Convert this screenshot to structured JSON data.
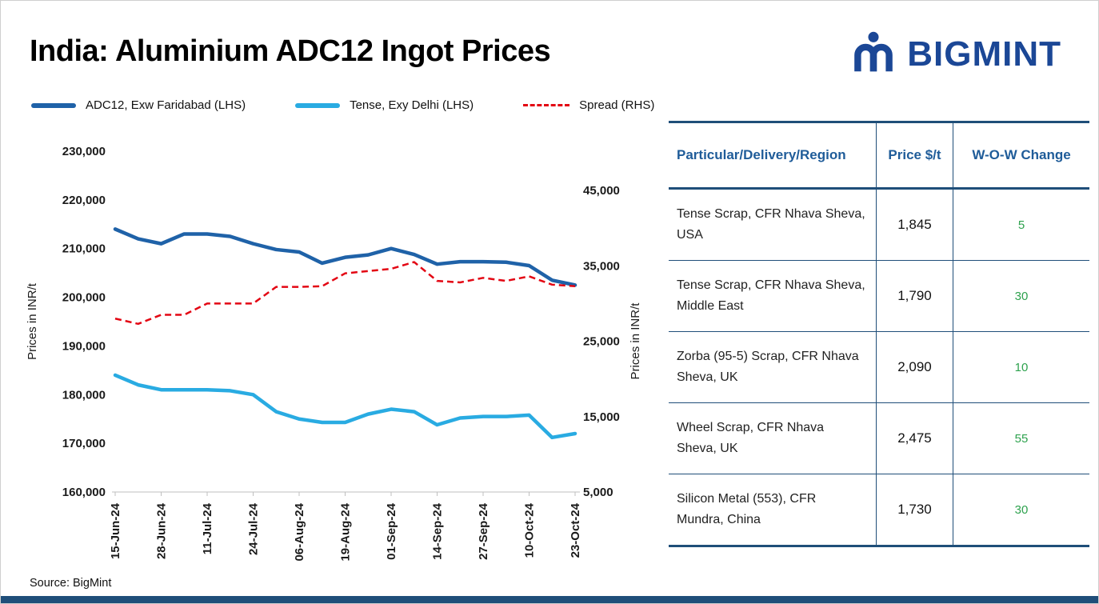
{
  "colors": {
    "navy": "#1F4E79",
    "header-blue": "#1F5C99",
    "blue-dark": "#1F62A8",
    "blue-light": "#29ABE2",
    "red": "#E30613",
    "green": "#2EA24E",
    "logo": "#1B4796"
  },
  "title": "India: Aluminium ADC12 Ingot Prices",
  "logo": {
    "text": "BIGMINT"
  },
  "legend": [
    {
      "label": "ADC12, Exw Faridabad (LHS)"
    },
    {
      "label": "Tense, Exy Delhi (LHS)"
    },
    {
      "label": "Spread (RHS)"
    }
  ],
  "chart_data": {
    "type": "line",
    "left_axis": {
      "label": "Prices in INR/t",
      "min": 160000,
      "max": 230000,
      "ticks": [
        160000,
        170000,
        180000,
        190000,
        200000,
        210000,
        220000,
        230000
      ]
    },
    "right_axis": {
      "label": "Prices in INR/t",
      "min": 5000,
      "max": 45000,
      "ticks": [
        5000,
        15000,
        25000,
        35000,
        45000
      ]
    },
    "x_labels": [
      "15-Jun-24",
      "28-Jun-24",
      "11-Jul-24",
      "24-Jul-24",
      "06-Aug-24",
      "19-Aug-24",
      "01-Sep-24",
      "14-Sep-24",
      "27-Sep-24",
      "10-Oct-24",
      "23-Oct-24"
    ],
    "grid": false,
    "legend_position": "top",
    "series": [
      {
        "id": "adc12",
        "name": "ADC12, Exw Faridabad (LHS)",
        "axis": "left",
        "values": [
          214000,
          212000,
          211000,
          213000,
          213000,
          212500,
          211000,
          209800,
          209300,
          207000,
          208200,
          208700,
          210000,
          208800,
          206800,
          207300,
          207300,
          207200,
          206500,
          203500,
          202500
        ]
      },
      {
        "id": "tense",
        "name": "Tense, Exy Delhi (LHS)",
        "axis": "left",
        "values": [
          184000,
          182000,
          181000,
          181000,
          181000,
          180800,
          180000,
          176500,
          175000,
          174300,
          174300,
          176000,
          177000,
          176500,
          173800,
          175200,
          175500,
          175500,
          175800,
          171200,
          172000
        ]
      },
      {
        "id": "spread",
        "name": "Spread (RHS)",
        "axis": "right",
        "values": [
          28000,
          27300,
          28500,
          28500,
          30000,
          30000,
          30000,
          32200,
          32200,
          32300,
          34000,
          34300,
          34600,
          35500,
          33000,
          32800,
          33400,
          33000,
          33600,
          32500,
          32300
        ]
      }
    ]
  },
  "table": {
    "headers": [
      "Particular/Delivery/Region",
      "Price $/t",
      "W-O-W Change"
    ],
    "rows": [
      {
        "particular": "Tense Scrap, CFR Nhava Sheva, USA",
        "price": "1,845",
        "change": "5"
      },
      {
        "particular": "Tense Scrap, CFR Nhava Sheva, Middle East",
        "price": "1,790",
        "change": "30"
      },
      {
        "particular": "Zorba (95-5) Scrap, CFR Nhava Sheva, UK",
        "price": "2,090",
        "change": "10"
      },
      {
        "particular": "Wheel Scrap, CFR Nhava Sheva, UK",
        "price": "2,475",
        "change": "55"
      },
      {
        "particular": "Silicon Metal (553), CFR Mundra, China",
        "price": "1,730",
        "change": "30"
      }
    ]
  },
  "source": "Source: BigMint"
}
